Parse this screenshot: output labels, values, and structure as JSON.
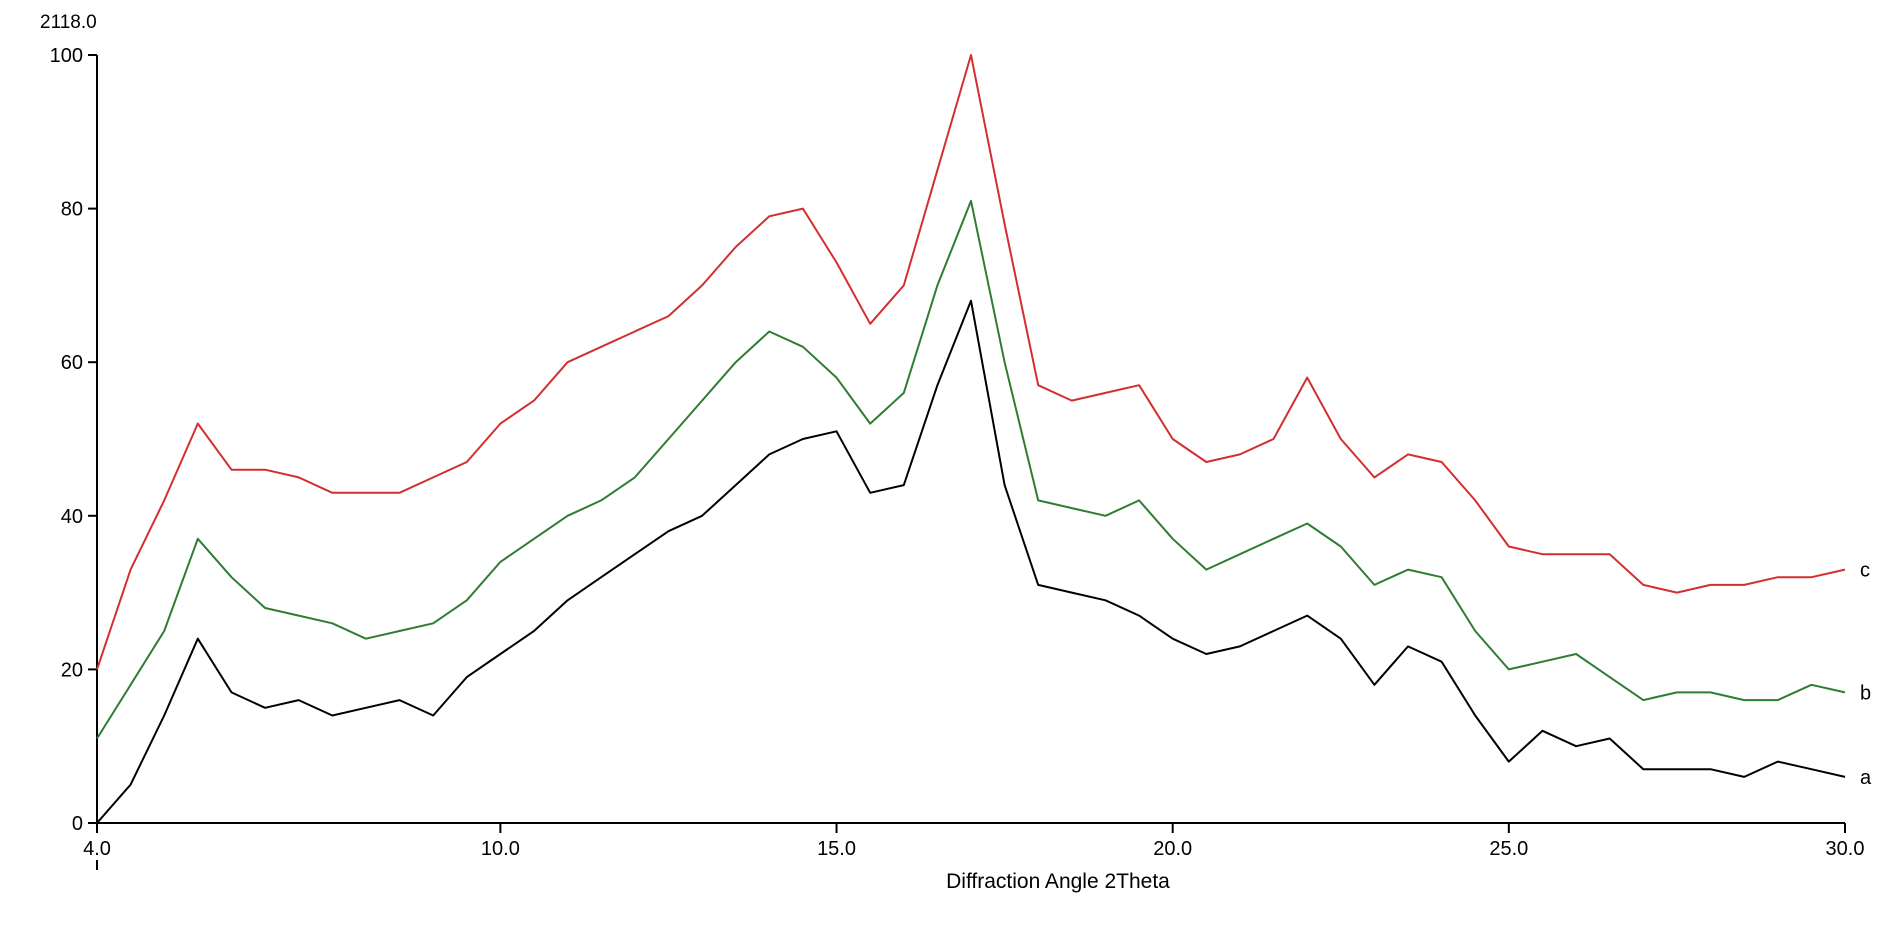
{
  "chart_data": {
    "type": "line",
    "corner_label": "2118.0",
    "xlabel": "Diffraction Angle 2Theta",
    "ylabel": "",
    "xlim": [
      4.0,
      30.0
    ],
    "ylim": [
      0,
      100
    ],
    "x_ticks": [
      4.0,
      10.0,
      15.0,
      20.0,
      25.0,
      30.0
    ],
    "x_tick_labels": [
      "4.0",
      "10.0",
      "15.0",
      "20.0",
      "25.0",
      "30.0"
    ],
    "y_ticks": [
      0,
      20,
      40,
      60,
      80,
      100
    ],
    "y_tick_labels": [
      "0",
      "20",
      "40",
      "60",
      "80",
      "100"
    ],
    "grid": false,
    "legend": "end-of-line labels",
    "x": [
      4.0,
      4.5,
      5.0,
      5.5,
      6.0,
      6.5,
      7.0,
      7.5,
      8.0,
      8.5,
      9.0,
      9.5,
      10.0,
      10.5,
      11.0,
      11.5,
      12.0,
      12.5,
      13.0,
      13.5,
      14.0,
      14.5,
      15.0,
      15.5,
      16.0,
      16.5,
      17.0,
      17.5,
      18.0,
      18.5,
      19.0,
      19.5,
      20.0,
      20.5,
      21.0,
      21.5,
      22.0,
      22.5,
      23.0,
      23.5,
      24.0,
      24.5,
      25.0,
      25.5,
      26.0,
      26.5,
      27.0,
      27.5,
      28.0,
      28.5,
      29.0,
      29.5,
      30.0
    ],
    "series": [
      {
        "name": "a",
        "color": "#000000",
        "values": [
          0,
          5,
          14,
          24,
          17,
          15,
          16,
          14,
          15,
          16,
          14,
          19,
          22,
          25,
          29,
          32,
          35,
          38,
          40,
          44,
          48,
          50,
          51,
          43,
          44,
          57,
          68,
          44,
          31,
          30,
          29,
          27,
          24,
          22,
          23,
          25,
          27,
          24,
          18,
          23,
          21,
          14,
          8,
          12,
          10,
          11,
          7,
          7,
          7,
          6,
          8,
          7,
          6
        ]
      },
      {
        "name": "b",
        "color": "#2e7d32",
        "values": [
          11,
          18,
          25,
          37,
          32,
          28,
          27,
          26,
          24,
          25,
          26,
          29,
          34,
          37,
          40,
          42,
          45,
          50,
          55,
          60,
          64,
          62,
          58,
          52,
          56,
          70,
          81,
          60,
          42,
          41,
          40,
          42,
          37,
          33,
          35,
          37,
          39,
          36,
          31,
          33,
          32,
          25,
          20,
          21,
          22,
          19,
          16,
          17,
          17,
          16,
          16,
          18,
          17
        ]
      },
      {
        "name": "c",
        "color": "#d32f2f",
        "values": [
          20,
          33,
          42,
          52,
          46,
          46,
          45,
          43,
          43,
          43,
          45,
          47,
          52,
          55,
          60,
          62,
          64,
          66,
          70,
          75,
          79,
          80,
          73,
          65,
          70,
          85,
          100,
          78,
          57,
          55,
          56,
          57,
          50,
          47,
          48,
          50,
          58,
          50,
          45,
          48,
          47,
          42,
          36,
          35,
          35,
          35,
          31,
          30,
          31,
          31,
          32,
          32,
          33
        ]
      }
    ]
  }
}
